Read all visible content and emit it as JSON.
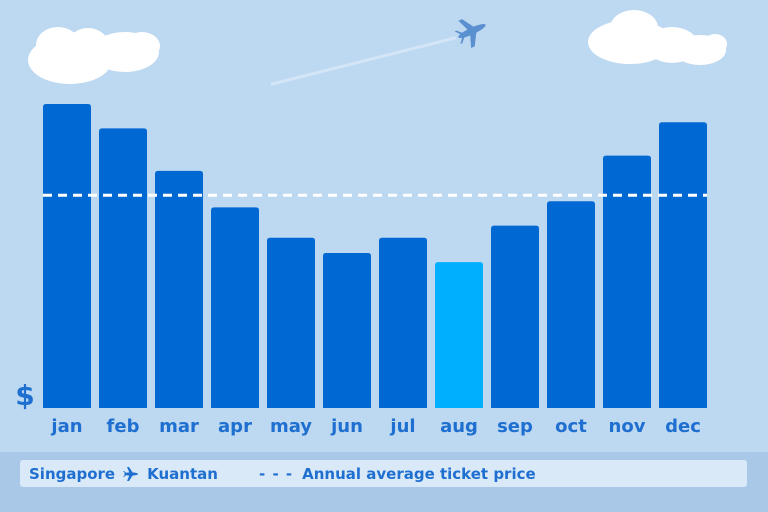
{
  "chart_data": {
    "type": "bar",
    "categories": [
      "jan",
      "feb",
      "mar",
      "apr",
      "may",
      "jun",
      "jul",
      "aug",
      "sep",
      "oct",
      "nov",
      "dec"
    ],
    "values": [
      100,
      92,
      78,
      66,
      56,
      51,
      56,
      48,
      60,
      68,
      83,
      94
    ],
    "highlight_index": 7,
    "average": 70,
    "ylim": [
      0,
      100
    ],
    "y_symbol": "$",
    "grid": false,
    "colors": {
      "bar": "#0068d2",
      "highlight": "#00b0ff",
      "average_line": "#ffffff",
      "label": "#1e6fd0",
      "background": "#bdd8f1"
    }
  },
  "legend": {
    "origin": "Singapore",
    "destination": "Kuantan",
    "plane_icon": "airplane-icon",
    "dash": "- - -",
    "average_label": "Annual average ticket price"
  }
}
